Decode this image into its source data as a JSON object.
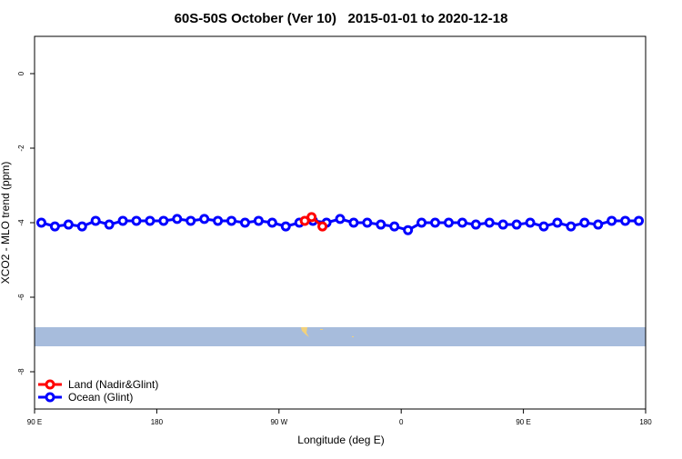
{
  "chart_data": {
    "type": "line",
    "title": "60S-50S October (Ver 10)   2015-01-01 to 2020-12-18",
    "x_label": "Longitude (deg E)",
    "y_label": "XCO2 - MLO trend (ppm)",
    "xlim": [
      90,
      540
    ],
    "ylim": [
      -9,
      1
    ],
    "xticks": [
      {
        "value": 90,
        "label": "90 E"
      },
      180,
      {
        "value": 270,
        "label": "90 W"
      },
      {
        "value": 360,
        "label": "0"
      },
      {
        "value": 450,
        "label": "90 E"
      },
      {
        "value": 540,
        "label": "180"
      }
    ],
    "yticks": [
      0,
      -2,
      -4,
      -6,
      -8
    ],
    "legend": "bottom-left",
    "series": [
      {
        "name": "Land (Nadir&Glint)",
        "color": "#ff0000",
        "x": [
          289,
          294,
          302
        ],
        "values": [
          -3.95,
          -3.85,
          -4.1
        ]
      },
      {
        "name": "Ocean (Glint)",
        "color": "#0000ff",
        "x": [
          95,
          105,
          115,
          125,
          135,
          145,
          155,
          165,
          175,
          185,
          195,
          205,
          215,
          225,
          235,
          245,
          255,
          265,
          275,
          285,
          295,
          305,
          315,
          325,
          335,
          345,
          355,
          365,
          375,
          385,
          395,
          405,
          415,
          425,
          435,
          445,
          455,
          465,
          475,
          485,
          495,
          505,
          515,
          525,
          535
        ],
        "values": [
          -4.0,
          -4.1,
          -4.05,
          -4.1,
          -3.95,
          -4.05,
          -3.95,
          -3.95,
          -3.95,
          -3.95,
          -3.9,
          -3.95,
          -3.9,
          -3.95,
          -3.95,
          -4.0,
          -3.95,
          -4.0,
          -4.1,
          -4.0,
          -3.95,
          -4.0,
          -3.9,
          -4.0,
          -4.0,
          -4.05,
          -4.1,
          -4.2,
          -4.0,
          -4.0,
          -4.0,
          -4.0,
          -4.05,
          -4.0,
          -4.05,
          -4.05,
          -4.0,
          -4.1,
          -4.0,
          -4.1,
          -4.0,
          -4.05,
          -3.95,
          -3.95,
          -3.95
        ]
      }
    ]
  }
}
